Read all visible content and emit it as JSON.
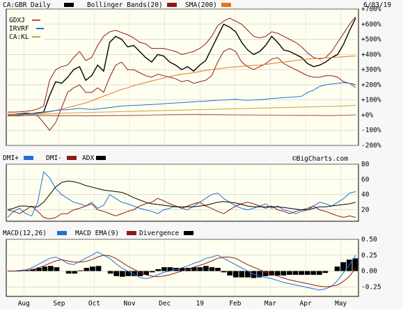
{
  "chart_data": [
    {
      "type": "line",
      "title": "CA:GBR Daily",
      "date": "6/03/19",
      "legend": [
        {
          "name": "CA:GBR Daily",
          "color": "#000000",
          "swatch": "bar"
        },
        {
          "name": "Bollinger Bands(20)",
          "color": "#8b1a1a",
          "swatch": "bar"
        },
        {
          "name": "SMA(200)",
          "color": "#e8731a",
          "swatch": "bar"
        }
      ],
      "legend_rows": [
        {
          "name": "GDXJ",
          "color": "#c0504d"
        },
        {
          "name": "IRVRF",
          "color": "#1f6fd6"
        },
        {
          "name": "CA:KL",
          "color": "#c8a040"
        }
      ],
      "watermark": "©BigCharts.com",
      "x_labels": [
        "Aug",
        "Sep",
        "Oct",
        "Nov",
        "Dec",
        "19",
        "Feb",
        "Mar",
        "Apr",
        "May"
      ],
      "y_ticks": [
        "+700%",
        "+600%",
        "+500%",
        "+400%",
        "+300%",
        "+200%",
        "+100%",
        "+0%",
        "-100%",
        "-200%"
      ],
      "ylim": [
        -200,
        700
      ],
      "grid": true,
      "series": [
        {
          "name": "CA:GBR Daily",
          "color": "#000000",
          "values": [
            5,
            5,
            8,
            12,
            10,
            15,
            20,
            130,
            220,
            210,
            250,
            300,
            320,
            230,
            260,
            330,
            290,
            480,
            520,
            500,
            450,
            460,
            420,
            380,
            350,
            400,
            390,
            350,
            330,
            300,
            320,
            290,
            330,
            360,
            440,
            520,
            600,
            580,
            550,
            480,
            430,
            400,
            420,
            460,
            520,
            480,
            430,
            420,
            400,
            380,
            340,
            320,
            330,
            350,
            380,
            400,
            470,
            560,
            640
          ]
        },
        {
          "name": "Bollinger upper",
          "color": "#8b1a1a",
          "values": [
            20,
            20,
            22,
            25,
            30,
            40,
            60,
            230,
            300,
            320,
            330,
            380,
            420,
            360,
            380,
            460,
            520,
            550,
            560,
            545,
            530,
            510,
            480,
            470,
            440,
            440,
            440,
            430,
            420,
            400,
            410,
            420,
            440,
            470,
            520,
            590,
            620,
            640,
            620,
            600,
            560,
            520,
            510,
            520,
            550,
            540,
            520,
            500,
            480,
            450,
            410,
            380,
            370,
            380,
            420,
            480,
            540,
            600,
            650
          ]
        },
        {
          "name": "Bollinger lower",
          "color": "#8b1a1a",
          "values": [
            -5,
            -5,
            -5,
            -2,
            0,
            -5,
            -50,
            -100,
            -50,
            50,
            150,
            180,
            200,
            150,
            150,
            180,
            150,
            250,
            330,
            350,
            300,
            300,
            280,
            260,
            250,
            270,
            260,
            250,
            240,
            220,
            230,
            210,
            220,
            230,
            260,
            350,
            420,
            440,
            420,
            350,
            320,
            300,
            320,
            340,
            370,
            380,
            340,
            320,
            300,
            280,
            260,
            250,
            250,
            260,
            260,
            250,
            220,
            210,
            200
          ]
        },
        {
          "name": "SMA(200)",
          "color": "#e8731a",
          "values": [
            5,
            5,
            5,
            6,
            8,
            10,
            15,
            22,
            30,
            40,
            50,
            60,
            70,
            80,
            95,
            110,
            125,
            140,
            155,
            170,
            180,
            195,
            205,
            215,
            225,
            235,
            245,
            255,
            262,
            270,
            275,
            280,
            288,
            295,
            300,
            305,
            310,
            315,
            318,
            322,
            325,
            328,
            330,
            335,
            340,
            345,
            350,
            355,
            360,
            365,
            370,
            372,
            375,
            378,
            380,
            382,
            385,
            388,
            390
          ]
        },
        {
          "name": "GDXJ",
          "color": "#c0504d",
          "values": [
            0,
            0,
            0,
            -2,
            -2,
            -3,
            -4,
            -4,
            -5,
            -5,
            -4,
            -5,
            -5,
            -6,
            -5,
            -5,
            -4,
            -4,
            -3,
            -3,
            -3,
            -2,
            -2,
            -1,
            0,
            1,
            2,
            3,
            4,
            4,
            5,
            5,
            5,
            4,
            4,
            3,
            3,
            2,
            2,
            1,
            1,
            0,
            0,
            0,
            0,
            -1,
            -1,
            -1,
            -2,
            -2,
            -2,
            -2,
            -3,
            -3,
            -3,
            -2,
            -1,
            0,
            2
          ]
        },
        {
          "name": "IRVRF",
          "color": "#1f6fd6",
          "values": [
            0,
            2,
            5,
            8,
            10,
            12,
            20,
            25,
            30,
            35,
            35,
            40,
            45,
            40,
            38,
            40,
            45,
            50,
            55,
            60,
            62,
            64,
            66,
            68,
            70,
            72,
            75,
            78,
            80,
            82,
            85,
            88,
            90,
            92,
            95,
            98,
            100,
            102,
            105,
            100,
            98,
            100,
            102,
            105,
            110,
            112,
            115,
            118,
            120,
            125,
            150,
            165,
            190,
            200,
            205,
            210,
            215,
            210,
            180
          ]
        },
        {
          "name": "CA:KL",
          "color": "#c8a040",
          "values": [
            0,
            0,
            2,
            3,
            4,
            5,
            6,
            8,
            10,
            12,
            14,
            15,
            16,
            17,
            18,
            19,
            20,
            21,
            22,
            23,
            24,
            25,
            26,
            27,
            28,
            29,
            30,
            31,
            32,
            33,
            34,
            35,
            36,
            37,
            38,
            39,
            40,
            41,
            42,
            43,
            44,
            45,
            46,
            47,
            48,
            49,
            50,
            51,
            52,
            53,
            54,
            55,
            56,
            57,
            58,
            59,
            60,
            62,
            65
          ]
        }
      ]
    },
    {
      "type": "line",
      "legend": [
        {
          "name": "DMI+",
          "color": "#1f6fd6"
        },
        {
          "name": "DMI-",
          "color": "#8b1a1a"
        },
        {
          "name": "ADX",
          "color": "#000000"
        }
      ],
      "y_ticks": [
        "80",
        "60",
        "40",
        "20"
      ],
      "ylim": [
        5,
        80
      ],
      "grid": true,
      "series": [
        {
          "name": "DMI+",
          "color": "#1f6fd6",
          "values": [
            10,
            18,
            22,
            15,
            12,
            30,
            70,
            62,
            48,
            40,
            35,
            30,
            28,
            25,
            30,
            22,
            26,
            40,
            35,
            30,
            28,
            25,
            22,
            20,
            18,
            15,
            20,
            22,
            25,
            22,
            20,
            25,
            30,
            35,
            40,
            42,
            35,
            30,
            25,
            22,
            20,
            22,
            25,
            28,
            22,
            25,
            20,
            18,
            15,
            18,
            20,
            25,
            30,
            28,
            25,
            30,
            35,
            42,
            44
          ]
        },
        {
          "name": "DMI-",
          "color": "#8b1a1a",
          "values": [
            20,
            18,
            15,
            20,
            25,
            18,
            10,
            8,
            10,
            15,
            15,
            20,
            22,
            25,
            28,
            20,
            18,
            15,
            12,
            15,
            18,
            20,
            25,
            28,
            30,
            35,
            32,
            28,
            25,
            22,
            25,
            28,
            30,
            25,
            22,
            18,
            15,
            20,
            25,
            28,
            30,
            28,
            25,
            22,
            25,
            20,
            18,
            15,
            18,
            20,
            22,
            25,
            20,
            18,
            15,
            12,
            10,
            12,
            10
          ]
        },
        {
          "name": "ADX",
          "color": "#000000",
          "values": [
            20,
            22,
            25,
            25,
            24,
            24,
            30,
            40,
            50,
            56,
            58,
            57,
            55,
            52,
            50,
            48,
            46,
            45,
            44,
            43,
            40,
            36,
            33,
            30,
            28,
            27,
            26,
            25,
            24,
            24,
            24,
            24,
            25,
            26,
            28,
            30,
            31,
            30,
            29,
            27,
            25,
            24,
            24,
            24,
            24,
            24,
            23,
            22,
            21,
            20,
            20,
            22,
            24,
            24,
            25,
            26,
            27,
            28,
            30
          ]
        }
      ]
    },
    {
      "type": "line",
      "legend": [
        {
          "name": "MACD(12,26)",
          "color": "#1f6fd6"
        },
        {
          "name": "MACD EMA(9)",
          "color": "#8b1a1a"
        },
        {
          "name": "Divergence",
          "color": "#000000"
        }
      ],
      "y_ticks": [
        "0.50",
        "0.25",
        "0.00",
        "-0.25"
      ],
      "ylim": [
        -0.4,
        0.5
      ],
      "grid": true,
      "series": [
        {
          "name": "MACD(12,26)",
          "color": "#1f6fd6",
          "values": [
            0,
            0,
            0.01,
            0.02,
            0.05,
            0.1,
            0.15,
            0.2,
            0.22,
            0.18,
            0.12,
            0.1,
            0.15,
            0.2,
            0.25,
            0.3,
            0.25,
            0.2,
            0.12,
            0.05,
            0,
            -0.05,
            -0.1,
            -0.12,
            -0.1,
            -0.06,
            -0.02,
            0,
            0.02,
            0.05,
            0.08,
            0.12,
            0.15,
            0.2,
            0.22,
            0.25,
            0.2,
            0.15,
            0.1,
            0.05,
            0,
            -0.05,
            -0.08,
            -0.1,
            -0.12,
            -0.15,
            -0.18,
            -0.2,
            -0.22,
            -0.24,
            -0.26,
            -0.28,
            -0.3,
            -0.28,
            -0.24,
            -0.15,
            -0.02,
            0.1,
            0.25
          ]
        },
        {
          "name": "MACD EMA(9)",
          "color": "#8b1a1a",
          "values": [
            0,
            0,
            0,
            0.01,
            0.02,
            0.05,
            0.08,
            0.12,
            0.16,
            0.18,
            0.16,
            0.14,
            0.14,
            0.15,
            0.18,
            0.22,
            0.25,
            0.24,
            0.2,
            0.14,
            0.08,
            0.03,
            -0.02,
            -0.06,
            -0.08,
            -0.09,
            -0.08,
            -0.06,
            -0.03,
            0,
            0.03,
            0.06,
            0.09,
            0.12,
            0.16,
            0.2,
            0.22,
            0.22,
            0.2,
            0.15,
            0.1,
            0.06,
            0.02,
            -0.02,
            -0.05,
            -0.08,
            -0.11,
            -0.14,
            -0.16,
            -0.18,
            -0.2,
            -0.22,
            -0.24,
            -0.25,
            -0.24,
            -0.22,
            -0.16,
            -0.08,
            0.05
          ]
        },
        {
          "name": "Divergence",
          "color": "#000000",
          "values": [
            0,
            0,
            0.01,
            0.01,
            0.03,
            0.05,
            0.07,
            0.08,
            0.06,
            0,
            -0.04,
            -0.04,
            0.01,
            0.05,
            0.07,
            0.08,
            0,
            -0.04,
            -0.08,
            -0.09,
            -0.08,
            -0.08,
            -0.08,
            -0.06,
            -0.02,
            0.03,
            0.06,
            0.06,
            0.05,
            0.05,
            0.05,
            0.06,
            0.06,
            0.08,
            0.06,
            0.05,
            -0.02,
            -0.07,
            -0.1,
            -0.1,
            -0.1,
            -0.11,
            -0.1,
            -0.08,
            -0.07,
            -0.07,
            -0.07,
            -0.06,
            -0.06,
            -0.06,
            -0.06,
            -0.06,
            -0.06,
            -0.03,
            0,
            0.07,
            0.14,
            0.18,
            0.2
          ]
        }
      ]
    }
  ]
}
